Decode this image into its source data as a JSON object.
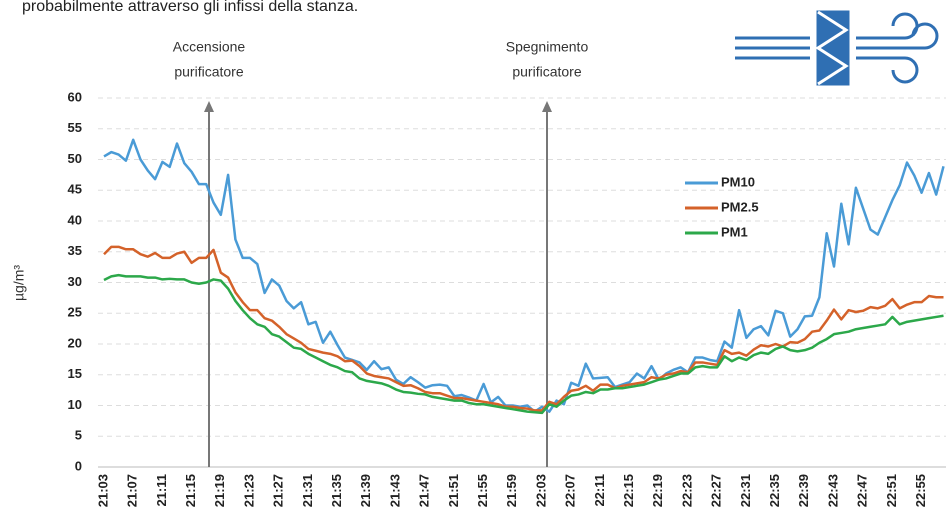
{
  "top_text": "probabilmente attraverso gli infissi della stanza.",
  "chart_data": {
    "type": "line",
    "y_label": "µg/m³",
    "annotations": [
      {
        "lines": [
          "Accensione",
          "purificatore"
        ]
      },
      {
        "lines": [
          "Spegnimento",
          "purificatore"
        ]
      }
    ],
    "categories": [
      "21:03",
      null,
      null,
      null,
      "21:07",
      null,
      null,
      null,
      "21:11",
      null,
      null,
      null,
      "21:15",
      null,
      null,
      null,
      "21:19",
      null,
      null,
      null,
      "21:23",
      null,
      null,
      null,
      "21:27",
      null,
      null,
      null,
      "21:31",
      null,
      null,
      null,
      "21:35",
      null,
      null,
      null,
      "21:39",
      null,
      null,
      null,
      "21:43",
      null,
      null,
      null,
      "21:47",
      null,
      null,
      null,
      "21:51",
      null,
      null,
      null,
      "21:55",
      null,
      null,
      null,
      "21:59",
      null,
      null,
      null,
      "22:03",
      null,
      null,
      null,
      "22:07",
      null,
      null,
      null,
      "22:11",
      null,
      null,
      null,
      "22:15",
      null,
      null,
      null,
      "22:19",
      null,
      null,
      null,
      "22:23",
      null,
      null,
      null,
      "22:27",
      null,
      null,
      null,
      "22:31",
      null,
      null,
      null,
      "22:35",
      null,
      null,
      null,
      "22:39",
      null,
      null,
      null,
      "22:43",
      null,
      null,
      null,
      "22:47",
      null,
      null,
      null,
      "22:51",
      null,
      null,
      null,
      "22:55",
      null,
      null,
      null
    ],
    "series": [
      {
        "name": "PM10",
        "color": "#4a9bd6",
        "values": [
          50.5,
          51.2,
          50.8,
          49.8,
          53.2,
          50,
          48.2,
          46.8,
          49.6,
          48.8,
          52.6,
          49.4,
          48,
          46,
          46,
          43,
          41,
          47.5,
          37,
          34,
          34,
          33,
          28.3,
          30.5,
          29.5,
          27,
          25.8,
          26.8,
          23.2,
          23.6,
          20.2,
          22,
          19.8,
          17.8,
          17.4,
          17,
          15.8,
          17.2,
          15.9,
          16.2,
          14.2,
          13.5,
          14.6,
          13.8,
          12.9,
          13.3,
          13.4,
          13.2,
          11.5,
          11.7,
          11.3,
          10.8,
          13.5,
          10.5,
          11.4,
          10,
          10,
          9.8,
          10,
          9,
          9.8,
          9,
          10.8,
          10.2,
          13.7,
          13.2,
          16.8,
          14.4,
          14.5,
          14.6,
          13,
          13.4,
          13.8,
          15.2,
          14.4,
          16.4,
          14.2,
          15.2,
          15.8,
          16.2,
          15.4,
          17.8,
          17.8,
          17.4,
          17.2,
          20.4,
          19.4,
          25.5,
          21,
          22.4,
          22.9,
          21.4,
          25.4,
          25,
          21.2,
          22.4,
          24.5,
          24.6,
          27.6,
          38,
          32.6,
          42.8,
          36.2,
          45.4,
          42,
          38.6,
          37.8,
          40.6,
          43.4,
          45.8,
          49.5,
          47.4,
          44.6,
          47.8,
          44.3,
          48.9
        ]
      },
      {
        "name": "PM2.5",
        "color": "#d4622a",
        "values": [
          34.6,
          35.8,
          35.8,
          35.4,
          35.4,
          34.6,
          34.2,
          34.8,
          34,
          34,
          34.7,
          35,
          33.2,
          34,
          34,
          35.3,
          31.6,
          30.8,
          28.4,
          26.8,
          25.5,
          25.5,
          24.2,
          23.8,
          22.8,
          21.6,
          20.9,
          20.2,
          19.2,
          18.9,
          18.6,
          18.4,
          18,
          17.2,
          17.3,
          16.4,
          15.2,
          14.8,
          14.6,
          14.4,
          13.8,
          13.2,
          13.3,
          12.8,
          12.2,
          12,
          12,
          11.6,
          11.2,
          11.2,
          11,
          10.8,
          10.6,
          10.4,
          10.2,
          9.8,
          9.8,
          9.6,
          9.5,
          9.2,
          9.2,
          10.6,
          10.2,
          11.4,
          12.4,
          12.6,
          13.2,
          12.4,
          13.4,
          13.4,
          12.8,
          13.2,
          13.4,
          13.6,
          13.8,
          14.6,
          14.4,
          15,
          15.2,
          15.6,
          15.4,
          17,
          17,
          16.8,
          16.6,
          19,
          18.4,
          18.6,
          18.1,
          19.1,
          19.8,
          19.6,
          20,
          19.6,
          20.3,
          20.2,
          20.8,
          22,
          22.2,
          23.8,
          25.6,
          24,
          25.5,
          25.2,
          25.4,
          26,
          25.8,
          26.2,
          27.3,
          25.8,
          26.4,
          26.8,
          26.8,
          27.8,
          27.6,
          27.6
        ]
      },
      {
        "name": "PM1",
        "color": "#2ca84a",
        "values": [
          30.4,
          31,
          31.2,
          31,
          31,
          31,
          30.8,
          30.8,
          30.5,
          30.6,
          30.5,
          30.5,
          30,
          29.8,
          30,
          30.5,
          30.3,
          29,
          27,
          25.5,
          24.2,
          23.2,
          22.8,
          21.6,
          21.2,
          20.3,
          19.4,
          19.2,
          18.4,
          17.8,
          17.2,
          16.6,
          16.2,
          15.6,
          15.4,
          14.4,
          14,
          13.8,
          13.6,
          13.2,
          12.6,
          12.2,
          12.1,
          11.9,
          11.8,
          11.4,
          11.2,
          11,
          10.8,
          10.8,
          10.4,
          10.2,
          10.2,
          10,
          9.8,
          9.6,
          9.4,
          9.2,
          9,
          8.9,
          8.8,
          10.2,
          9.8,
          10.8,
          11.6,
          11.8,
          12.2,
          12,
          12.6,
          12.6,
          12.8,
          12.8,
          13,
          13.2,
          13.4,
          13.8,
          14.2,
          14.4,
          14.8,
          15.2,
          15.2,
          16.2,
          16.4,
          16.2,
          16.2,
          18,
          17.2,
          17.8,
          17.4,
          18.2,
          18.6,
          18.4,
          19.2,
          19.6,
          19,
          18.8,
          19,
          19.4,
          20.2,
          20.8,
          21.6,
          21.8,
          22,
          22.4,
          22.6,
          22.8,
          23,
          23.2,
          24.4,
          23.2,
          23.6,
          23.8,
          24,
          24.2,
          24.4,
          24.6
        ]
      }
    ],
    "ylim": [
      0,
      60
    ],
    "yticks": [
      0,
      5,
      10,
      15,
      20,
      25,
      30,
      35,
      40,
      45,
      50,
      55,
      60
    ],
    "grid": true,
    "legend": "right"
  }
}
